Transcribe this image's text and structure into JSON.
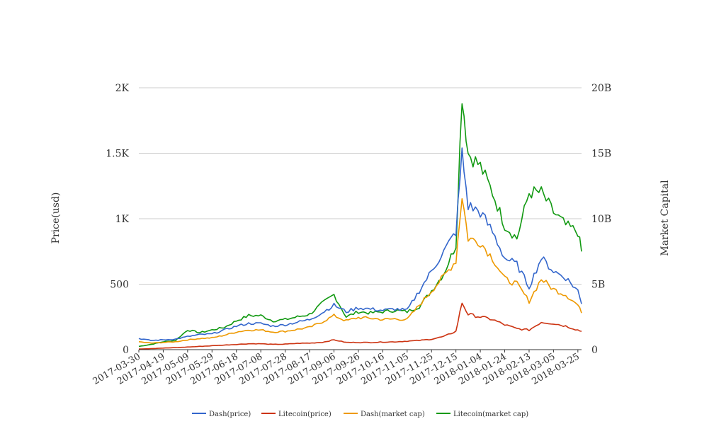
{
  "chart_data": {
    "type": "line",
    "ylabel": "Price(usd)",
    "y2label": "Market Capital",
    "ylim": [
      0,
      2000
    ],
    "y2lim": [
      0,
      20000000000
    ],
    "y_ticks": [
      "0",
      "500",
      "1K",
      "1.5K",
      "2K"
    ],
    "y2_ticks": [
      "0",
      "5B",
      "10B",
      "15B",
      "20B"
    ],
    "x_ticks": [
      "2017-03-30",
      "2017-04-19",
      "2017-05-09",
      "2017-05-29",
      "2017-06-18",
      "2017-07-08",
      "2017-07-28",
      "2017-08-17",
      "2017-09-06",
      "2017-09-26",
      "2017-10-16",
      "2017-11-05",
      "2017-11-25",
      "2017-12-15",
      "2018-01-04",
      "2018-01-24",
      "2018-02-13",
      "2018-03-05",
      "2018-03-25"
    ],
    "x": [
      "2017-03-30",
      "2017-04-09",
      "2017-04-19",
      "2017-04-29",
      "2017-05-09",
      "2017-05-19",
      "2017-05-29",
      "2017-06-08",
      "2017-06-18",
      "2017-06-28",
      "2017-07-08",
      "2017-07-18",
      "2017-07-28",
      "2017-08-07",
      "2017-08-17",
      "2017-08-27",
      "2017-09-06",
      "2017-09-16",
      "2017-09-26",
      "2017-10-06",
      "2017-10-16",
      "2017-10-26",
      "2017-11-05",
      "2017-11-15",
      "2017-11-25",
      "2017-12-05",
      "2017-12-15",
      "2017-12-20",
      "2017-12-25",
      "2018-01-04",
      "2018-01-14",
      "2018-01-24",
      "2018-02-03",
      "2018-02-13",
      "2018-02-23",
      "2018-03-05",
      "2018-03-15",
      "2018-03-25",
      "2018-03-28"
    ],
    "legend_position": "bottom",
    "grid": true,
    "series": [
      {
        "name": "Dash(price)",
        "axis": "left",
        "color": "#3366cc",
        "values": [
          85,
          70,
          75,
          80,
          100,
          115,
          120,
          150,
          180,
          200,
          200,
          180,
          190,
          210,
          230,
          280,
          340,
          290,
          320,
          310,
          300,
          310,
          300,
          450,
          600,
          750,
          900,
          1500,
          1100,
          1050,
          900,
          700,
          650,
          480,
          700,
          600,
          550,
          450,
          350
        ]
      },
      {
        "name": "Litecoin(price)",
        "axis": "left",
        "color": "#cc3311",
        "values": [
          5,
          8,
          12,
          15,
          20,
          25,
          30,
          35,
          40,
          45,
          45,
          40,
          42,
          48,
          50,
          55,
          75,
          55,
          55,
          55,
          58,
          60,
          65,
          70,
          80,
          100,
          140,
          360,
          270,
          250,
          230,
          190,
          160,
          150,
          210,
          200,
          180,
          150,
          140
        ]
      },
      {
        "name": "Dash(market cap)",
        "axis": "right",
        "color": "#ee9900",
        "values": [
          600000000,
          500000000,
          550000000,
          600000000,
          750000000,
          850000000,
          900000000,
          1100000000,
          1350000000,
          1500000000,
          1500000000,
          1350000000,
          1400000000,
          1550000000,
          1700000000,
          2100000000,
          2600000000,
          2200000000,
          2450000000,
          2400000000,
          2300000000,
          2350000000,
          2300000000,
          3400000000,
          4500000000,
          5600000000,
          6800000000,
          11800000000,
          8500000000,
          8200000000,
          7000000000,
          5400000000,
          5000000000,
          3700000000,
          5400000000,
          4600000000,
          4200000000,
          3400000000,
          2800000000
        ]
      },
      {
        "name": "Litecoin(market cap)",
        "axis": "right",
        "color": "#119911",
        "values": [
          250000000,
          400000000,
          600000000,
          700000000,
          1500000000,
          1300000000,
          1500000000,
          1700000000,
          2200000000,
          2600000000,
          2600000000,
          2200000000,
          2300000000,
          2500000000,
          2700000000,
          3500000000,
          4200000000,
          2500000000,
          2900000000,
          2800000000,
          2900000000,
          3000000000,
          2900000000,
          3300000000,
          4500000000,
          5800000000,
          8000000000,
          19500000000,
          15000000000,
          14000000000,
          12000000000,
          9500000000,
          8500000000,
          12000000000,
          12000000000,
          10500000000,
          9500000000,
          9000000000,
          7500000000
        ]
      }
    ]
  }
}
